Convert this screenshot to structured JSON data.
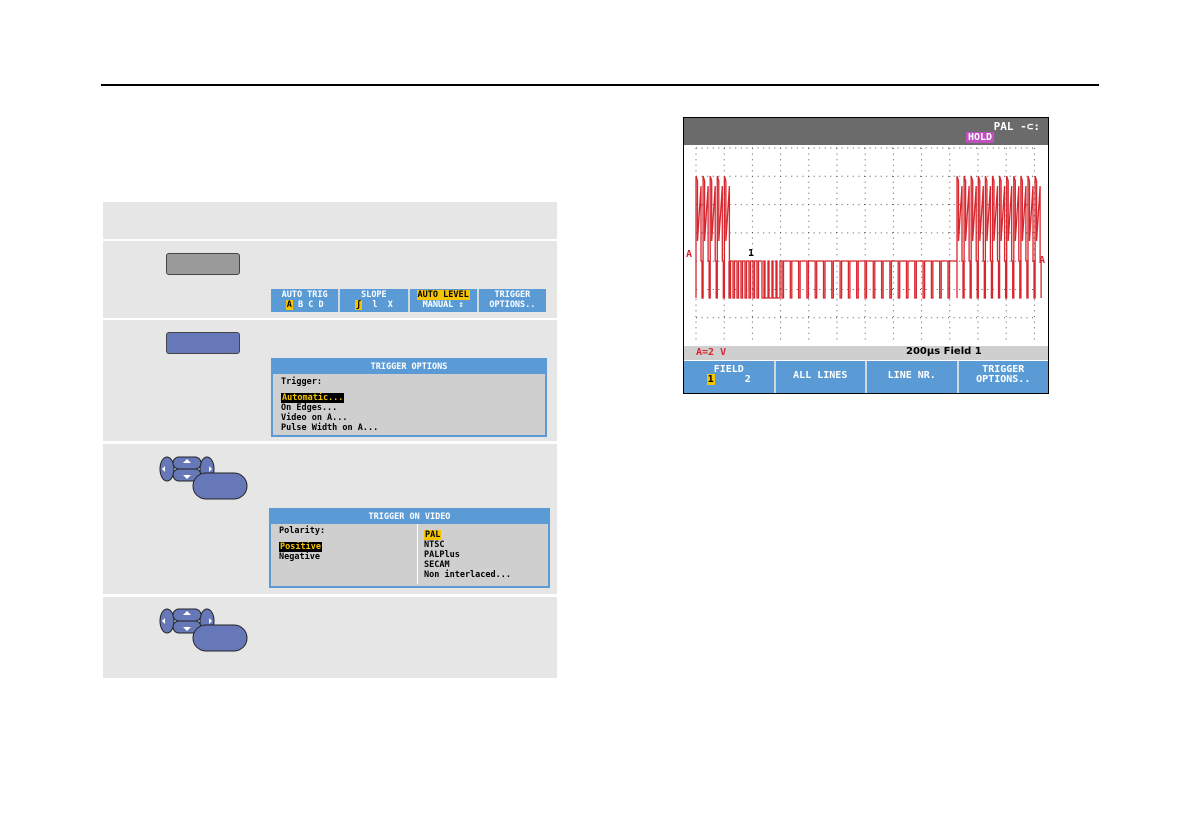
{
  "steps": [
    {
      "key_color": "#9a9a9a",
      "function_keys": [
        {
          "top": "AUTO TRIG",
          "bottom": [
            "A",
            "B",
            "C",
            "D"
          ],
          "selected": "A"
        },
        {
          "top": "SLOPE",
          "bottom": [
            "ʃ",
            "l",
            "X"
          ],
          "selected": "ʃ"
        },
        {
          "top": "AUTO LEVEL",
          "bottom": [
            "MANUAL ⇕"
          ],
          "selected_top": true
        },
        {
          "top": "TRIGGER",
          "bottom": [
            "OPTIONS.."
          ]
        }
      ]
    },
    {
      "key_color": "#6678b8",
      "menu": {
        "title": "TRIGGER OPTIONS",
        "label": "Trigger:",
        "items": [
          "Automatic...",
          "On Edges...",
          "Video on A...",
          "Pulse Width on A..."
        ],
        "selected": "Automatic..."
      }
    },
    {
      "menu": {
        "title": "TRIGGER ON VIDEO",
        "label": "Polarity:",
        "left_items": [
          "Positive",
          "Negative"
        ],
        "left_selected": "Positive",
        "right_items": [
          "PAL",
          "NTSC",
          "PALPlus",
          "SECAM",
          "Non interlaced..."
        ],
        "right_selected": "PAL"
      }
    },
    {}
  ],
  "scope": {
    "header": {
      "standard": "PAL",
      "plug_icon": "mains-plug-icon",
      "hold": "HOLD"
    },
    "marker_left": "A",
    "marker_right": "A",
    "trigger_marker": "1",
    "status": {
      "scale": "A=2 V",
      "timebase": "200µs",
      "field": "Field 1"
    },
    "function_keys": [
      {
        "top": "FIELD",
        "options": [
          "1",
          "2"
        ],
        "selected": "1"
      },
      {
        "top": "ALL LINES"
      },
      {
        "top": "LINE NR."
      },
      {
        "top": "TRIGGER",
        "bottom": "OPTIONS.."
      }
    ],
    "colors": {
      "trace": "#d7262e",
      "header": "#6b6b6b",
      "menu": "#5b9bd5",
      "highlight": "#f5c400",
      "hold": "#c050c0"
    }
  }
}
